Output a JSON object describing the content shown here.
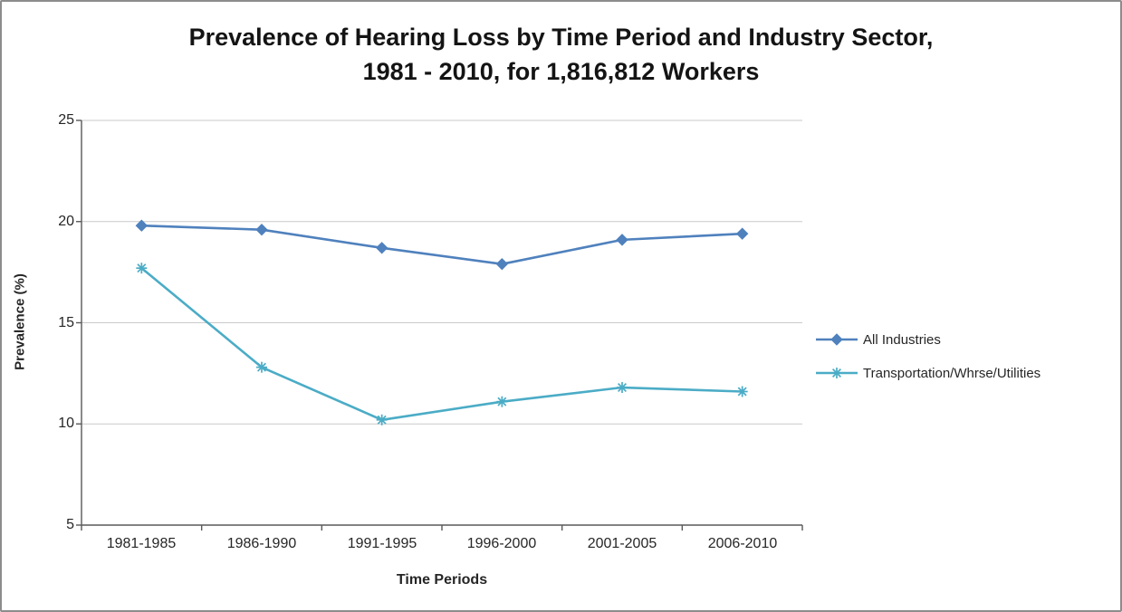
{
  "title": {
    "line1": "Prevalence of Hearing Loss by Time Period and Industry Sector,",
    "line2": "1981 - 2010, for 1,816,812 Workers"
  },
  "chart_data": {
    "type": "line",
    "title": "Prevalence of Hearing Loss by Time Period and Industry Sector, 1981 - 2010, for 1,816,812 Workers",
    "categories": [
      "1981-1985",
      "1986-1990",
      "1991-1995",
      "1996-2000",
      "2001-2005",
      "2006-2010"
    ],
    "series": [
      {
        "name": "All Industries",
        "color": "#4F81BD",
        "marker": "diamond",
        "values": [
          19.8,
          19.6,
          18.7,
          17.9,
          19.1,
          19.4
        ]
      },
      {
        "name": "Transportation/Whrse/Utilities",
        "color": "#4BACC6",
        "marker": "asterisk",
        "values": [
          17.7,
          12.8,
          10.2,
          11.1,
          11.8,
          11.6
        ]
      }
    ],
    "xlabel": "Time Periods",
    "ylabel": "Prevalence (%)",
    "ylim": [
      5,
      25
    ],
    "yticks": [
      5,
      10,
      15,
      20,
      25
    ],
    "grid": true,
    "legend_position": "right",
    "colors": {
      "grid": "#c9c9c9",
      "axis": "#595959",
      "text": "#262626"
    }
  }
}
